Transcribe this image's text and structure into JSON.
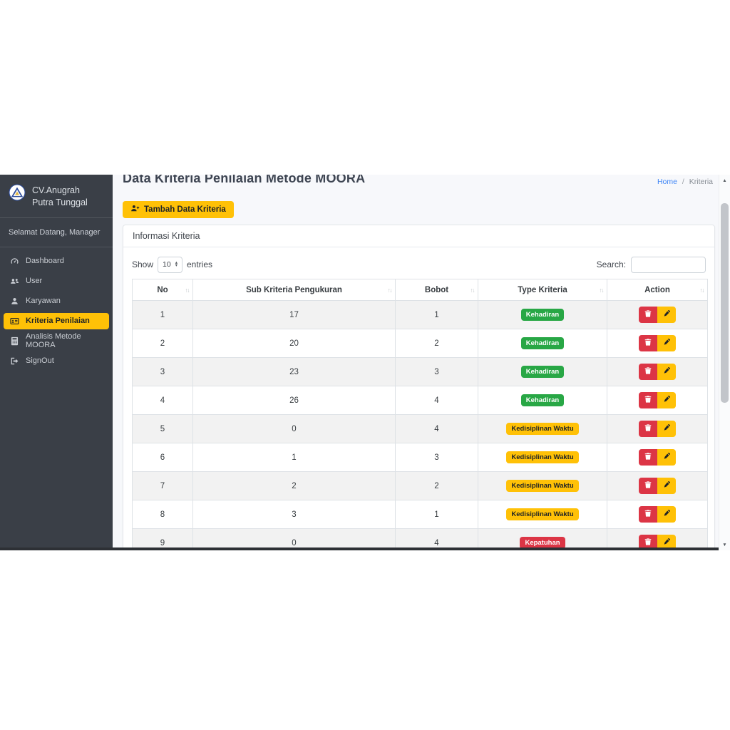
{
  "sidebar": {
    "brand": {
      "line1": "CV.Anugrah",
      "line2": "Putra Tunggal",
      "logo_icon": "company-triangle-logo"
    },
    "welcome": "Selamat Datang, Manager",
    "items": [
      {
        "label": "Dashboard",
        "icon": "dashboard-icon",
        "active": false
      },
      {
        "label": "User",
        "icon": "users-icon",
        "active": false
      },
      {
        "label": "Karyawan",
        "icon": "user-icon",
        "active": false
      },
      {
        "label": "Kriteria Penilaian",
        "icon": "id-card-icon",
        "active": true
      },
      {
        "label": "Analisis Metode MOORA",
        "icon": "calculator-icon",
        "active": false
      },
      {
        "label": "SignOut",
        "icon": "signout-icon",
        "active": false
      }
    ]
  },
  "header": {
    "title": "Data Kriteria Penilaian Metode MOORA",
    "breadcrumb": {
      "home": "Home",
      "separator": "/",
      "current": "Kriteria"
    }
  },
  "toolbar": {
    "add_button_label": "Tambah Data Kriteria",
    "add_button_icon": "person-plus-icon"
  },
  "card": {
    "title": "Informasi Kriteria"
  },
  "table_controls": {
    "show_label": "Show",
    "page_length": "10",
    "entries_label": "entries",
    "search_label": "Search:",
    "search_value": ""
  },
  "table": {
    "columns": [
      "No",
      "Sub Kriteria Pengukuran",
      "Bobot",
      "Type Kriteria",
      "Action"
    ],
    "rows": [
      {
        "no": "1",
        "sub": "17",
        "bobot": "1",
        "type": "Kehadiran",
        "type_color": "green"
      },
      {
        "no": "2",
        "sub": "20",
        "bobot": "2",
        "type": "Kehadiran",
        "type_color": "green"
      },
      {
        "no": "3",
        "sub": "23",
        "bobot": "3",
        "type": "Kehadiran",
        "type_color": "green"
      },
      {
        "no": "4",
        "sub": "26",
        "bobot": "4",
        "type": "Kehadiran",
        "type_color": "green"
      },
      {
        "no": "5",
        "sub": "0",
        "bobot": "4",
        "type": "Kedisiplinan Waktu",
        "type_color": "yellow"
      },
      {
        "no": "6",
        "sub": "1",
        "bobot": "3",
        "type": "Kedisiplinan Waktu",
        "type_color": "yellow"
      },
      {
        "no": "7",
        "sub": "2",
        "bobot": "2",
        "type": "Kedisiplinan Waktu",
        "type_color": "yellow"
      },
      {
        "no": "8",
        "sub": "3",
        "bobot": "1",
        "type": "Kedisiplinan Waktu",
        "type_color": "yellow"
      },
      {
        "no": "9",
        "sub": "0",
        "bobot": "4",
        "type": "Kepatuhan",
        "type_color": "red"
      }
    ],
    "action_icons": [
      "trash-icon",
      "edit-icon"
    ]
  },
  "icons": {
    "sort": "↑↓",
    "select_up": "▴",
    "select_down": "▾",
    "scroll_up": "▲",
    "scroll_down": "▼"
  },
  "colors": {
    "sidebar_bg": "#3a3f47",
    "accent_yellow": "#ffc107",
    "badge_green": "#28a745",
    "badge_yellow": "#ffc107",
    "badge_red": "#dc3545",
    "delete_red": "#dc3545",
    "link_blue": "#3f86f6",
    "content_bg": "#f7f8fb"
  }
}
